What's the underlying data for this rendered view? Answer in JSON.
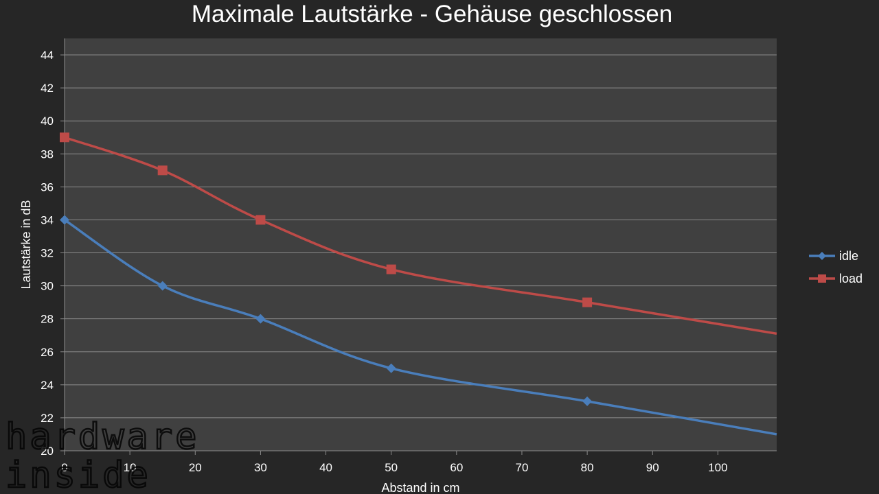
{
  "chart_data": {
    "type": "line",
    "title": "Maximale Lautstärke - Gehäuse geschlossen",
    "xlabel": "Abstand in cm",
    "ylabel": "Lautstärke in dB",
    "xlim": [
      0,
      109
    ],
    "ylim": [
      20,
      45
    ],
    "xticks": [
      0,
      10,
      20,
      30,
      40,
      50,
      60,
      70,
      80,
      90,
      100
    ],
    "yticks": [
      20,
      22,
      24,
      26,
      28,
      30,
      32,
      34,
      36,
      38,
      40,
      42,
      44
    ],
    "grid": true,
    "legend": "right",
    "series": [
      {
        "name": "idle",
        "color": "#4a7ebb",
        "marker": "diamond",
        "x": [
          0,
          15,
          30,
          50,
          80,
          109
        ],
        "y": [
          34,
          30,
          28,
          25,
          23,
          21
        ]
      },
      {
        "name": "load",
        "color": "#be4b48",
        "marker": "square",
        "x": [
          0,
          15,
          30,
          50,
          80,
          109
        ],
        "y": [
          39,
          37,
          34,
          31,
          29,
          27.1
        ]
      }
    ]
  },
  "watermark": {
    "line1": "hardware",
    "line2": "inside"
  }
}
